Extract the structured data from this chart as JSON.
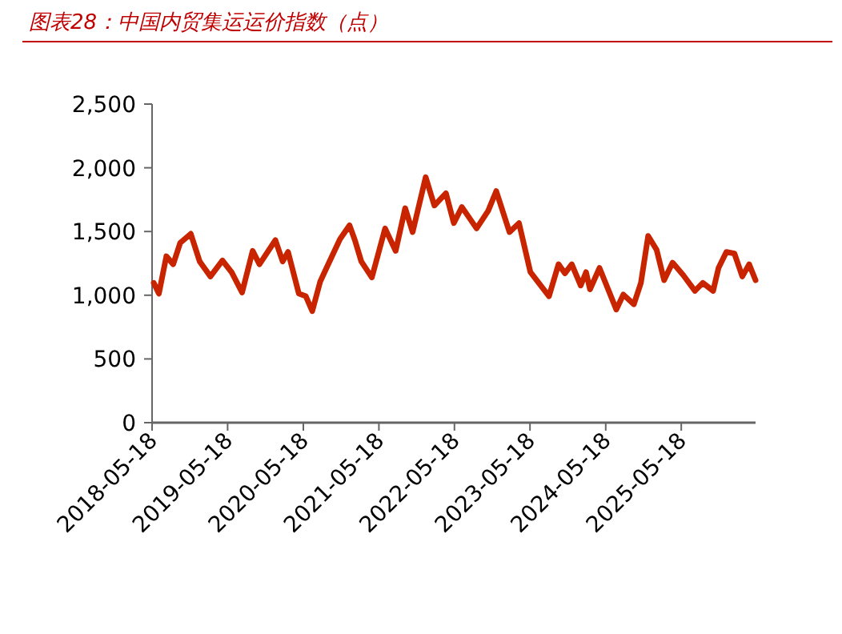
{
  "chart_data": {
    "type": "line",
    "title": "图表28：中国内贸集运运价指数（点）",
    "x": [
      "2018-05-26",
      "2018-06-20",
      "2018-07-26",
      "2018-08-28",
      "2018-10-01",
      "2018-11-21",
      "2019-01-03",
      "2019-02-24",
      "2019-04-23",
      "2019-06-06",
      "2019-07-27",
      "2019-09-16",
      "2019-10-19",
      "2020-01-04",
      "2020-02-08",
      "2020-03-05",
      "2020-04-26",
      "2020-05-30",
      "2020-06-30",
      "2020-08-07",
      "2020-09-09",
      "2020-11-11",
      "2020-12-27",
      "2021-01-22",
      "2021-02-22",
      "2021-04-14",
      "2021-06-17",
      "2021-08-07",
      "2021-09-22",
      "2021-10-28",
      "2021-12-30",
      "2022-02-10",
      "2022-04-07",
      "2022-05-15",
      "2022-06-23",
      "2022-09-02",
      "2022-10-28",
      "2022-12-06",
      "2023-02-08",
      "2023-03-26",
      "2023-05-20",
      "2023-08-18",
      "2023-10-03",
      "2023-11-03",
      "2023-12-06",
      "2024-01-18",
      "2024-02-13",
      "2024-03-03",
      "2024-04-18",
      "2024-07-08",
      "2024-08-11",
      "2024-10-01",
      "2024-11-04",
      "2024-12-09",
      "2025-01-19",
      "2025-02-24",
      "2025-04-06",
      "2025-05-27",
      "2025-07-23",
      "2025-08-30",
      "2025-10-19",
      "2025-11-14",
      "2025-12-22",
      "2026-01-30",
      "2026-03-09",
      "2026-04-11",
      "2026-05-12"
    ],
    "values": [
      1097,
      1013,
      1306,
      1243,
      1411,
      1482,
      1265,
      1147,
      1273,
      1181,
      1021,
      1348,
      1243,
      1432,
      1265,
      1340,
      1013,
      992,
      875,
      1105,
      1222,
      1440,
      1549,
      1432,
      1265,
      1139,
      1524,
      1348,
      1683,
      1495,
      1926,
      1704,
      1800,
      1566,
      1692,
      1524,
      1662,
      1817,
      1495,
      1566,
      1181,
      992,
      1243,
      1172,
      1243,
      1076,
      1181,
      1046,
      1214,
      888,
      1005,
      929,
      1097,
      1465,
      1356,
      1118,
      1256,
      1159,
      1034,
      1097,
      1034,
      1214,
      1340,
      1327,
      1147,
      1243,
      1118
    ],
    "color": "#c82400",
    "xlim": [
      "2018-05-18",
      "2026-05-12"
    ],
    "xticks": [
      "2018-05-18",
      "2019-05-18",
      "2020-05-18",
      "2021-05-18",
      "2022-05-18",
      "2023-05-18",
      "2024-05-18",
      "2025-05-18"
    ],
    "ylim": [
      0,
      2500
    ],
    "yticks": [
      {
        "value": 0,
        "label": "0"
      },
      {
        "value": 500,
        "label": "500"
      },
      {
        "value": 1000,
        "label": "1,000"
      },
      {
        "value": 1500,
        "label": "1,500"
      },
      {
        "value": 2000,
        "label": "2,000"
      },
      {
        "value": 2500,
        "label": "2,500"
      }
    ]
  }
}
